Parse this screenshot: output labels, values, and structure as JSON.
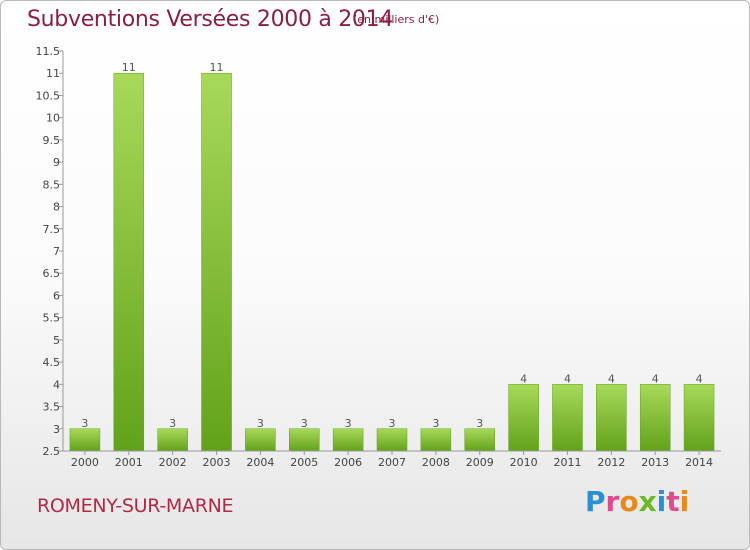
{
  "header": {
    "title": "Subventions Versées 2000 à 2014",
    "subtitle": "(en milliers d'€)"
  },
  "footer": {
    "commune": "ROMENY-SUR-MARNE",
    "logo_text": "Proxiti"
  },
  "colors": {
    "bar_light": "#a8d95a",
    "bar_dark": "#62a21a",
    "title": "#8b1f3f",
    "axis": "#999999"
  },
  "chart_data": {
    "type": "bar",
    "title": "Subventions Versées 2000 à 2014",
    "subtitle": "(en milliers d'€)",
    "categories": [
      "2000",
      "2001",
      "2002",
      "2003",
      "2004",
      "2005",
      "2006",
      "2007",
      "2008",
      "2009",
      "2010",
      "2011",
      "2012",
      "2013",
      "2014"
    ],
    "values": [
      3,
      11,
      3,
      11,
      3,
      3,
      3,
      3,
      3,
      3,
      4,
      4,
      4,
      4,
      4
    ],
    "data_labels": [
      "3",
      "11",
      "3",
      "11",
      "3",
      "3",
      "3",
      "3",
      "3",
      "3",
      "4",
      "4",
      "4",
      "4",
      "4"
    ],
    "ylim": [
      2.5,
      11.5
    ],
    "yticks": [
      2.5,
      3,
      3.5,
      4,
      4.5,
      5,
      5.5,
      6,
      6.5,
      7,
      7.5,
      8,
      8.5,
      9,
      9.5,
      10,
      10.5,
      11,
      11.5
    ],
    "ytick_labels": [
      "2.5",
      "3",
      "3.5",
      "4",
      "4.5",
      "5",
      "5.5",
      "6",
      "6.5",
      "7",
      "7.5",
      "8",
      "8.5",
      "9",
      "9.5",
      "10",
      "10.5",
      "11",
      "11.5"
    ],
    "xlabel": "",
    "ylabel": "",
    "grid": false,
    "legend": "none"
  }
}
